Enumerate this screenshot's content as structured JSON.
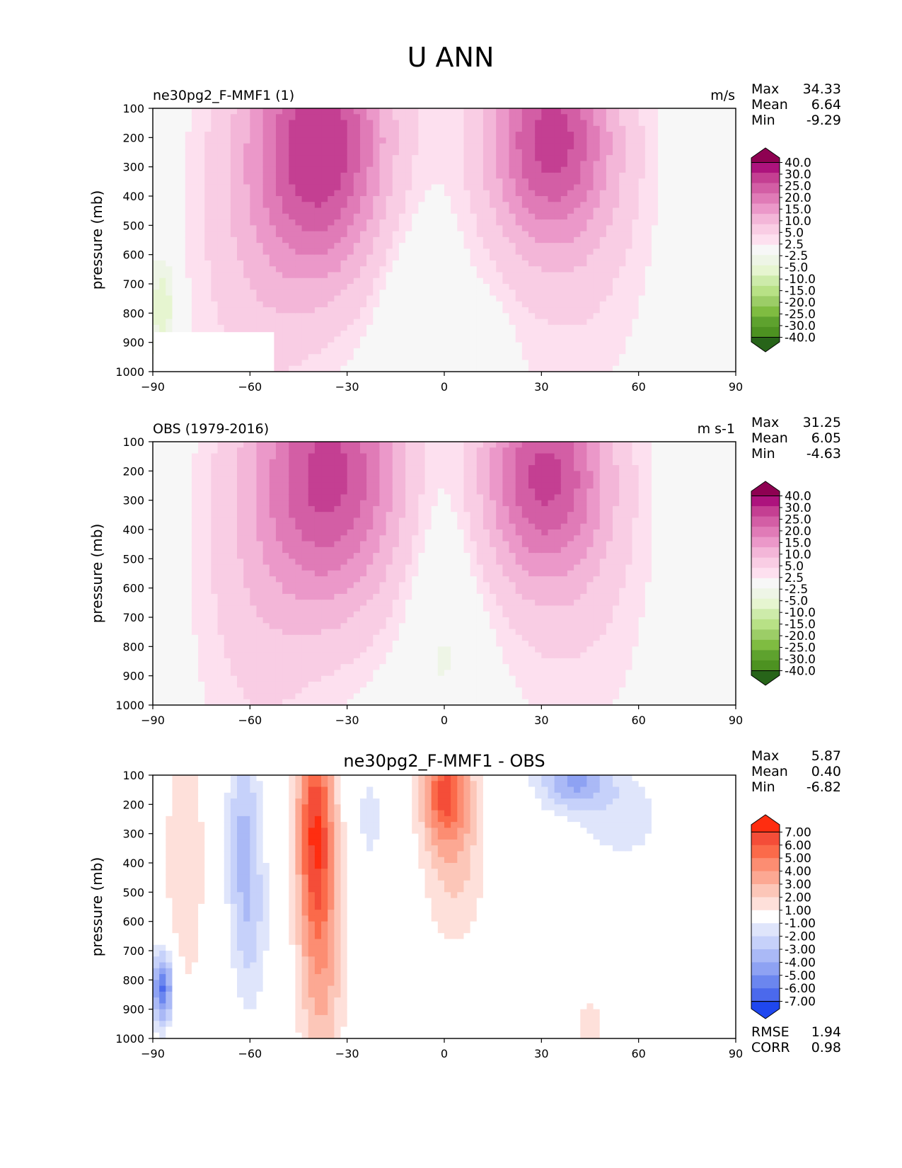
{
  "title": "U ANN",
  "colors": {
    "diverging_pos": [
      "#f7f7f7",
      "#fde0ef",
      "#f9cde4",
      "#f3b6d8",
      "#eb98c9",
      "#e07bb7",
      "#d35ea5",
      "#c43f92",
      "#ad137d",
      "#8e0152"
    ],
    "diverging_neg": [
      "#f7f7f7",
      "#eef5e6",
      "#e6f5d0",
      "#cdebaa",
      "#b8e186",
      "#9ccd67",
      "#7fbc41",
      "#5ea22e",
      "#4d9221",
      "#276419"
    ],
    "diff_pos": [
      "#ffffff",
      "#fee0da",
      "#fcc6b8",
      "#fca893",
      "#fc8d72",
      "#fb6a4a",
      "#f44d38",
      "#ff2d10"
    ],
    "diff_neg": [
      "#ffffff",
      "#dfe5fb",
      "#c6d1fa",
      "#aab9f6",
      "#8ea2f3",
      "#6b86ef",
      "#4b69ec",
      "#1f47ef"
    ],
    "axis": "#000000"
  },
  "colorbar_top": {
    "labels": [
      "40.0",
      "30.0",
      "25.0",
      "20.0",
      "15.0",
      "10.0",
      "5.0",
      "2.5",
      "-2.5",
      "-5.0",
      "-10.0",
      "-15.0",
      "-20.0",
      "-25.0",
      "-30.0",
      "-40.0"
    ]
  },
  "colorbar_diff": {
    "labels": [
      "7.00",
      "6.00",
      "5.00",
      "4.00",
      "3.00",
      "2.00",
      "1.00",
      "-1.00",
      "-2.00",
      "-3.00",
      "-4.00",
      "-5.00",
      "-6.00",
      "-7.00"
    ]
  },
  "panels": [
    {
      "left_title": "ne30pg2_F-MMF1 (1)",
      "center_title": "",
      "units": "m/s",
      "stats": [
        {
          "label": "Max",
          "value": "34.33"
        },
        {
          "label": "Mean",
          "value": "6.64"
        },
        {
          "label": "Min",
          "value": "-9.29"
        }
      ],
      "extra_stats": []
    },
    {
      "left_title": "OBS (1979-2016)",
      "center_title": "",
      "units": "m s-1",
      "stats": [
        {
          "label": "Max",
          "value": "31.25"
        },
        {
          "label": "Mean",
          "value": "6.05"
        },
        {
          "label": "Min",
          "value": "-4.63"
        }
      ],
      "extra_stats": []
    },
    {
      "left_title": "",
      "center_title": "ne30pg2_F-MMF1 - OBS",
      "units": "",
      "stats": [
        {
          "label": "Max",
          "value": "5.87"
        },
        {
          "label": "Mean",
          "value": "0.40"
        },
        {
          "label": "Min",
          "value": "-6.82"
        }
      ],
      "extra_stats": [
        {
          "label": "RMSE",
          "value": "1.94"
        },
        {
          "label": "CORR",
          "value": "0.98"
        }
      ]
    }
  ],
  "chart_data": [
    {
      "type": "heatmap",
      "title": "ne30pg2_F-MMF1 (1)",
      "xlabel": "",
      "ylabel": "pressure (mb)",
      "xlim": [
        -90,
        90
      ],
      "ylim": [
        1000,
        100
      ],
      "xticks": [
        "−90",
        "−60",
        "−30",
        "0",
        "30",
        "60",
        "90"
      ],
      "yticks": [
        "100",
        "200",
        "300",
        "400",
        "500",
        "600",
        "700",
        "800",
        "900",
        "1000"
      ],
      "units": "m/s",
      "features": [
        {
          "kind": "jet",
          "lat": -38,
          "p": 220,
          "peak": 34.33
        },
        {
          "kind": "jet",
          "lat": 32,
          "p": 200,
          "peak": 31
        },
        {
          "kind": "easterly",
          "lat": -12,
          "p": 700,
          "peak": -4
        },
        {
          "kind": "easterly",
          "lat": 12,
          "p": 900,
          "peak": -3
        },
        {
          "kind": "easterly",
          "lat": -86,
          "p": 750,
          "peak": -9.29
        }
      ]
    },
    {
      "type": "heatmap",
      "title": "OBS (1979-2016)",
      "xlabel": "",
      "ylabel": "pressure (mb)",
      "xlim": [
        -90,
        90
      ],
      "ylim": [
        1000,
        100
      ],
      "xticks": [
        "−90",
        "−60",
        "−30",
        "0",
        "30",
        "60",
        "90"
      ],
      "yticks": [
        "100",
        "200",
        "300",
        "400",
        "500",
        "600",
        "700",
        "800",
        "900",
        "1000"
      ],
      "units": "m s-1",
      "features": [
        {
          "kind": "jet",
          "lat": -33,
          "p": 200,
          "peak": 31.25
        },
        {
          "kind": "jet",
          "lat": 30,
          "p": 200,
          "peak": 30
        },
        {
          "kind": "easterly",
          "lat": 0,
          "p": 600,
          "peak": -4.63
        }
      ]
    },
    {
      "type": "heatmap",
      "title": "ne30pg2_F-MMF1 - OBS",
      "xlabel": "",
      "ylabel": "pressure (mb)",
      "xlim": [
        -90,
        90
      ],
      "ylim": [
        1000,
        100
      ],
      "xticks": [
        "−90",
        "−60",
        "−30",
        "0",
        "30",
        "60",
        "90"
      ],
      "yticks": [
        "100",
        "200",
        "300",
        "400",
        "500",
        "600",
        "700",
        "800",
        "900",
        "1000"
      ],
      "features": [
        {
          "kind": "positive",
          "lat": -40,
          "p": 250,
          "peak": 5.87
        },
        {
          "kind": "positive",
          "lat": 0,
          "p": 150,
          "peak": 5
        },
        {
          "kind": "negative",
          "lat": -62,
          "p": 300,
          "peak": -3
        },
        {
          "kind": "negative",
          "lat": 40,
          "p": 120,
          "peak": -4
        },
        {
          "kind": "negative",
          "lat": -86,
          "p": 820,
          "peak": -6.82
        }
      ]
    }
  ]
}
